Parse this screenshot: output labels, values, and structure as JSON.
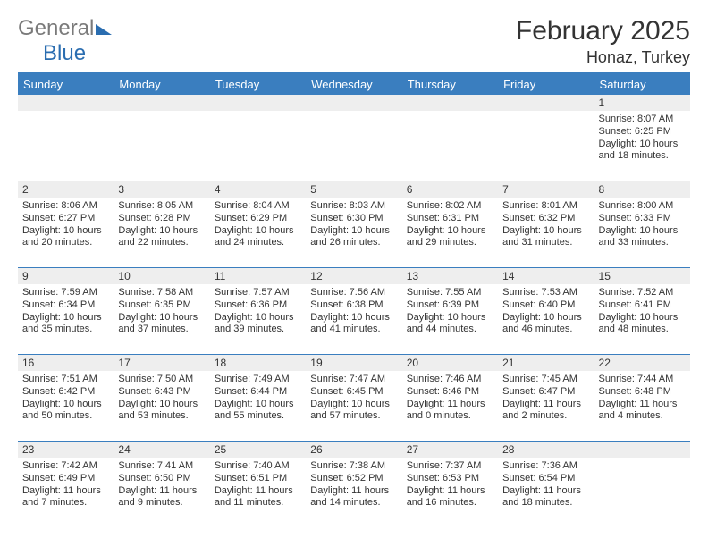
{
  "logo": {
    "word1": "General",
    "word2": "Blue"
  },
  "title": "February 2025",
  "location": "Honaz, Turkey",
  "colors": {
    "header_bar": "#3a7ebf",
    "header_text": "#ffffff",
    "daynum_bg": "#eeeeee",
    "cell_text": "#333333",
    "rule": "#3a7ebf",
    "logo_gray": "#7a7a7a",
    "logo_blue": "#2a6db0",
    "page_bg": "#ffffff"
  },
  "fonts": {
    "body_pt": 11,
    "daynum_pt": 12,
    "dayhead_pt": 13,
    "title_pt": 30,
    "location_pt": 18
  },
  "day_headers": [
    "Sunday",
    "Monday",
    "Tuesday",
    "Wednesday",
    "Thursday",
    "Friday",
    "Saturday"
  ],
  "weeks": [
    {
      "nums": [
        "",
        "",
        "",
        "",
        "",
        "",
        "1"
      ],
      "cells": [
        null,
        null,
        null,
        null,
        null,
        null,
        {
          "sunrise": "Sunrise: 8:07 AM",
          "sunset": "Sunset: 6:25 PM",
          "day1": "Daylight: 10 hours",
          "day2": "and 18 minutes."
        }
      ]
    },
    {
      "nums": [
        "2",
        "3",
        "4",
        "5",
        "6",
        "7",
        "8"
      ],
      "cells": [
        {
          "sunrise": "Sunrise: 8:06 AM",
          "sunset": "Sunset: 6:27 PM",
          "day1": "Daylight: 10 hours",
          "day2": "and 20 minutes."
        },
        {
          "sunrise": "Sunrise: 8:05 AM",
          "sunset": "Sunset: 6:28 PM",
          "day1": "Daylight: 10 hours",
          "day2": "and 22 minutes."
        },
        {
          "sunrise": "Sunrise: 8:04 AM",
          "sunset": "Sunset: 6:29 PM",
          "day1": "Daylight: 10 hours",
          "day2": "and 24 minutes."
        },
        {
          "sunrise": "Sunrise: 8:03 AM",
          "sunset": "Sunset: 6:30 PM",
          "day1": "Daylight: 10 hours",
          "day2": "and 26 minutes."
        },
        {
          "sunrise": "Sunrise: 8:02 AM",
          "sunset": "Sunset: 6:31 PM",
          "day1": "Daylight: 10 hours",
          "day2": "and 29 minutes."
        },
        {
          "sunrise": "Sunrise: 8:01 AM",
          "sunset": "Sunset: 6:32 PM",
          "day1": "Daylight: 10 hours",
          "day2": "and 31 minutes."
        },
        {
          "sunrise": "Sunrise: 8:00 AM",
          "sunset": "Sunset: 6:33 PM",
          "day1": "Daylight: 10 hours",
          "day2": "and 33 minutes."
        }
      ]
    },
    {
      "nums": [
        "9",
        "10",
        "11",
        "12",
        "13",
        "14",
        "15"
      ],
      "cells": [
        {
          "sunrise": "Sunrise: 7:59 AM",
          "sunset": "Sunset: 6:34 PM",
          "day1": "Daylight: 10 hours",
          "day2": "and 35 minutes."
        },
        {
          "sunrise": "Sunrise: 7:58 AM",
          "sunset": "Sunset: 6:35 PM",
          "day1": "Daylight: 10 hours",
          "day2": "and 37 minutes."
        },
        {
          "sunrise": "Sunrise: 7:57 AM",
          "sunset": "Sunset: 6:36 PM",
          "day1": "Daylight: 10 hours",
          "day2": "and 39 minutes."
        },
        {
          "sunrise": "Sunrise: 7:56 AM",
          "sunset": "Sunset: 6:38 PM",
          "day1": "Daylight: 10 hours",
          "day2": "and 41 minutes."
        },
        {
          "sunrise": "Sunrise: 7:55 AM",
          "sunset": "Sunset: 6:39 PM",
          "day1": "Daylight: 10 hours",
          "day2": "and 44 minutes."
        },
        {
          "sunrise": "Sunrise: 7:53 AM",
          "sunset": "Sunset: 6:40 PM",
          "day1": "Daylight: 10 hours",
          "day2": "and 46 minutes."
        },
        {
          "sunrise": "Sunrise: 7:52 AM",
          "sunset": "Sunset: 6:41 PM",
          "day1": "Daylight: 10 hours",
          "day2": "and 48 minutes."
        }
      ]
    },
    {
      "nums": [
        "16",
        "17",
        "18",
        "19",
        "20",
        "21",
        "22"
      ],
      "cells": [
        {
          "sunrise": "Sunrise: 7:51 AM",
          "sunset": "Sunset: 6:42 PM",
          "day1": "Daylight: 10 hours",
          "day2": "and 50 minutes."
        },
        {
          "sunrise": "Sunrise: 7:50 AM",
          "sunset": "Sunset: 6:43 PM",
          "day1": "Daylight: 10 hours",
          "day2": "and 53 minutes."
        },
        {
          "sunrise": "Sunrise: 7:49 AM",
          "sunset": "Sunset: 6:44 PM",
          "day1": "Daylight: 10 hours",
          "day2": "and 55 minutes."
        },
        {
          "sunrise": "Sunrise: 7:47 AM",
          "sunset": "Sunset: 6:45 PM",
          "day1": "Daylight: 10 hours",
          "day2": "and 57 minutes."
        },
        {
          "sunrise": "Sunrise: 7:46 AM",
          "sunset": "Sunset: 6:46 PM",
          "day1": "Daylight: 11 hours",
          "day2": "and 0 minutes."
        },
        {
          "sunrise": "Sunrise: 7:45 AM",
          "sunset": "Sunset: 6:47 PM",
          "day1": "Daylight: 11 hours",
          "day2": "and 2 minutes."
        },
        {
          "sunrise": "Sunrise: 7:44 AM",
          "sunset": "Sunset: 6:48 PM",
          "day1": "Daylight: 11 hours",
          "day2": "and 4 minutes."
        }
      ]
    },
    {
      "nums": [
        "23",
        "24",
        "25",
        "26",
        "27",
        "28",
        ""
      ],
      "cells": [
        {
          "sunrise": "Sunrise: 7:42 AM",
          "sunset": "Sunset: 6:49 PM",
          "day1": "Daylight: 11 hours",
          "day2": "and 7 minutes."
        },
        {
          "sunrise": "Sunrise: 7:41 AM",
          "sunset": "Sunset: 6:50 PM",
          "day1": "Daylight: 11 hours",
          "day2": "and 9 minutes."
        },
        {
          "sunrise": "Sunrise: 7:40 AM",
          "sunset": "Sunset: 6:51 PM",
          "day1": "Daylight: 11 hours",
          "day2": "and 11 minutes."
        },
        {
          "sunrise": "Sunrise: 7:38 AM",
          "sunset": "Sunset: 6:52 PM",
          "day1": "Daylight: 11 hours",
          "day2": "and 14 minutes."
        },
        {
          "sunrise": "Sunrise: 7:37 AM",
          "sunset": "Sunset: 6:53 PM",
          "day1": "Daylight: 11 hours",
          "day2": "and 16 minutes."
        },
        {
          "sunrise": "Sunrise: 7:36 AM",
          "sunset": "Sunset: 6:54 PM",
          "day1": "Daylight: 11 hours",
          "day2": "and 18 minutes."
        },
        null
      ]
    }
  ]
}
